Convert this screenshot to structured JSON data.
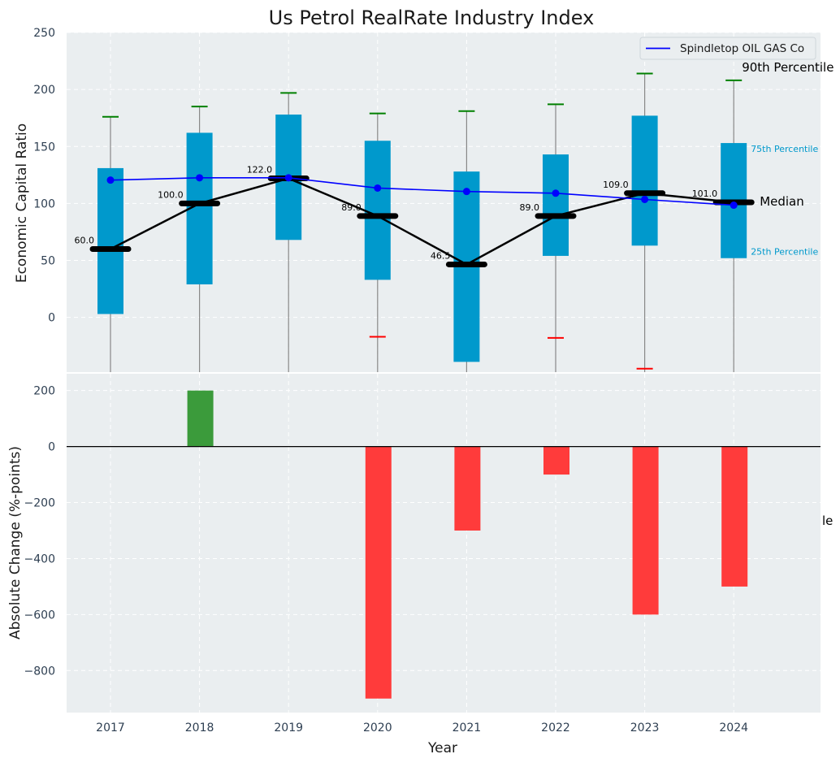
{
  "chart_data": {
    "type": "box",
    "title": "Us Petrol RealRate Industry Index",
    "xlabel": "Year",
    "categories": [
      "2017",
      "2018",
      "2019",
      "2020",
      "2021",
      "2022",
      "2023",
      "2024"
    ],
    "top_panel": {
      "ylabel": "Economic Capital Ratio",
      "ylim": [
        -48,
        250
      ],
      "yticks": [
        0,
        50,
        100,
        150,
        200,
        250
      ],
      "grid": true,
      "legend": {
        "position": "top-right",
        "entries": [
          "Spindletop OIL GAS Co"
        ]
      },
      "boxes": [
        {
          "year": "2017",
          "p25": 3,
          "p75": 131,
          "p90": 176,
          "p10": null,
          "median": 60.0,
          "median_label": "60.0"
        },
        {
          "year": "2018",
          "p25": 29,
          "p75": 162,
          "p90": 185,
          "p10": null,
          "median": 100.0,
          "median_label": "100.0"
        },
        {
          "year": "2019",
          "p25": 68,
          "p75": 178,
          "p90": 197,
          "p10": null,
          "median": 122.0,
          "median_label": "122.0"
        },
        {
          "year": "2020",
          "p25": 33,
          "p75": 155,
          "p90": 179,
          "p10": -17,
          "median": 89.0,
          "median_label": "89.0"
        },
        {
          "year": "2021",
          "p25": -39,
          "p75": 128,
          "p90": 181,
          "p10": null,
          "median": 46.5,
          "median_label": "46.5"
        },
        {
          "year": "2022",
          "p25": 54,
          "p75": 143,
          "p90": 187,
          "p10": -18,
          "median": 89.0,
          "median_label": "89.0"
        },
        {
          "year": "2023",
          "p25": 63,
          "p75": 177,
          "p90": 214,
          "p10": -45,
          "median": 109.0,
          "median_label": "109.0"
        },
        {
          "year": "2024",
          "p25": 52,
          "p75": 153,
          "p90": 208,
          "p10": null,
          "median": 101.0,
          "median_label": "101.0"
        }
      ],
      "company_series": {
        "name": "Spindletop OIL GAS Co",
        "color": "#0000ff",
        "values": [
          120.5,
          122.5,
          122.5,
          113.5,
          110.5,
          109,
          103.5,
          98.5
        ]
      },
      "annotations": {
        "p90_label": "90th Percentile",
        "p75_label": "75th Percentile",
        "median_label": "Median",
        "p25_label": "25th Percentile"
      }
    },
    "bottom_panel": {
      "ylabel": "Absolute Change (%-points)",
      "ylim": [
        -950,
        260
      ],
      "yticks": [
        -800,
        -600,
        -400,
        -200,
        0,
        200
      ],
      "ytick_labels": [
        "−800",
        "−600",
        "−400",
        "−200",
        "0",
        "200"
      ],
      "values": [
        0,
        200,
        0,
        -900,
        -300,
        -100,
        -600,
        -500
      ],
      "positive_color": "#3b9b3b",
      "negative_color": "#ff3b3b",
      "clipped_text": "le"
    },
    "colors": {
      "box": "#0099cc",
      "median_line": "#000000",
      "p90_cap": "#008000",
      "p10_cap": "#ff0000",
      "whisker": "#888888",
      "panel_bg": "#eaeef0"
    }
  }
}
